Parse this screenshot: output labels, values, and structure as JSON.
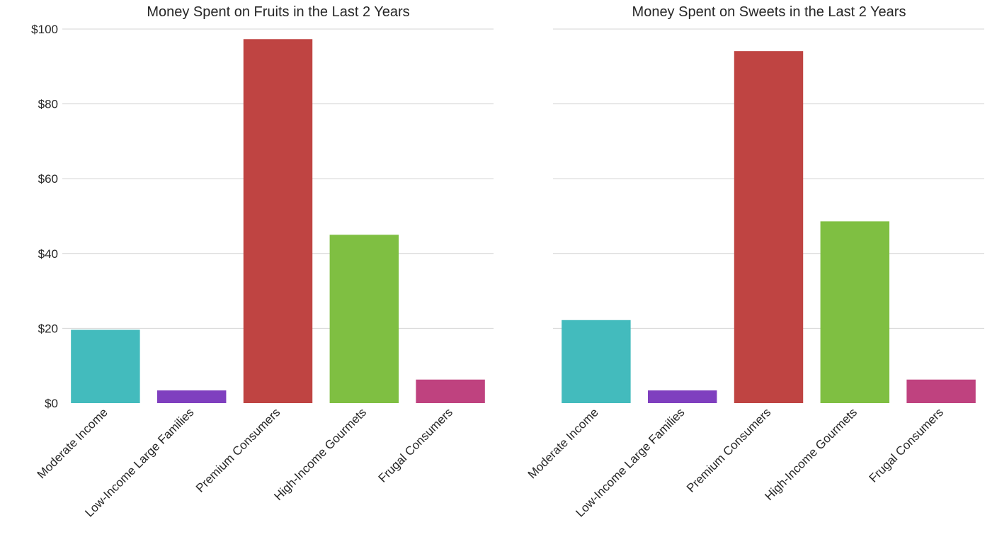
{
  "chart_data": [
    {
      "type": "bar",
      "title": "Money Spent on Fruits in the Last 2 Years",
      "xlabel": "",
      "ylabel": "",
      "categories": [
        "Moderate Income",
        "Low-Income Large Families",
        "Premium Consumers",
        "High-Income Gourmets",
        "Frugal Consumers"
      ],
      "values": [
        19.6,
        3.4,
        97.3,
        45.0,
        6.3
      ],
      "colors": [
        "#43bbbd",
        "#7f3fbf",
        "#bf4442",
        "#7fbf42",
        "#bf427f"
      ],
      "ylim": [
        0,
        100
      ],
      "yticks": [
        0,
        20,
        40,
        60,
        80,
        100
      ],
      "ytick_labels": [
        "$0",
        "$20",
        "$40",
        "$60",
        "$80",
        "$100"
      ],
      "grid": true
    },
    {
      "type": "bar",
      "title": "Money Spent on Sweets in the Last 2 Years",
      "xlabel": "",
      "ylabel": "",
      "categories": [
        "Moderate Income",
        "Low-Income Large Families",
        "Premium Consumers",
        "High-Income Gourmets",
        "Frugal Consumers"
      ],
      "values": [
        22.2,
        3.4,
        94.1,
        48.6,
        6.3
      ],
      "colors": [
        "#43bbbd",
        "#7f3fbf",
        "#bf4442",
        "#7fbf42",
        "#bf427f"
      ],
      "ylim": [
        0,
        100
      ],
      "yticks": [
        0,
        20,
        40,
        60,
        80,
        100
      ],
      "ytick_labels": [],
      "grid": true
    }
  ]
}
